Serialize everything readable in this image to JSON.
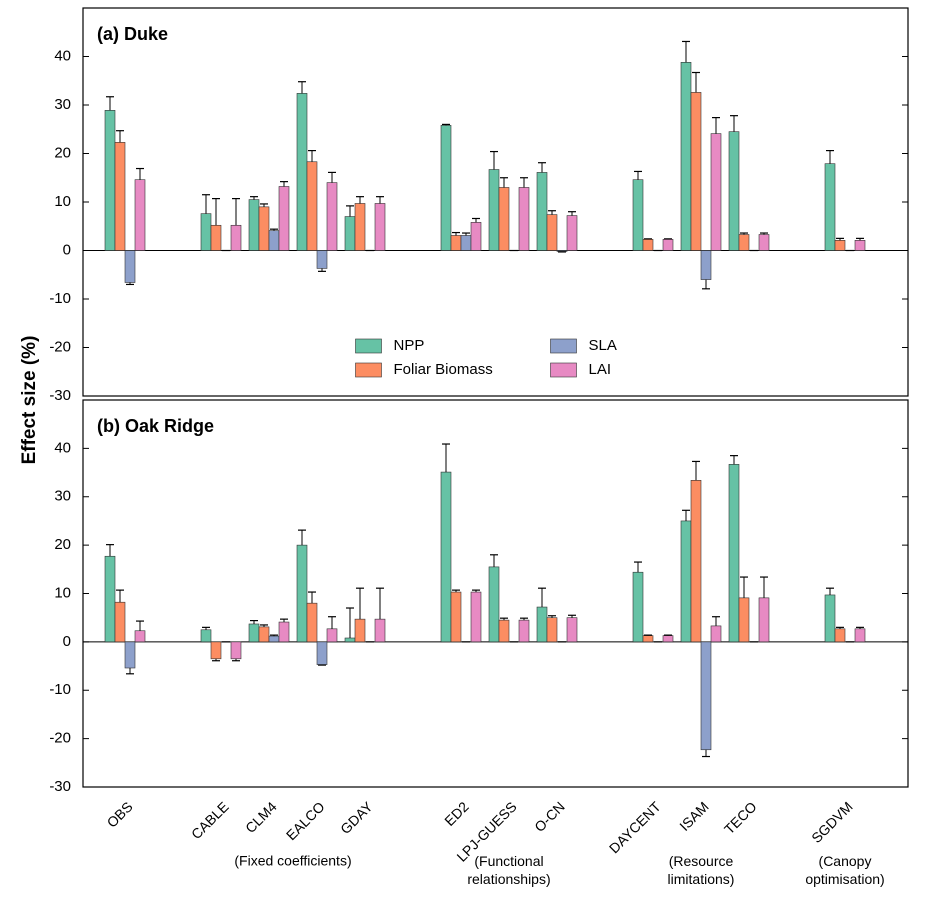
{
  "chart_data": [
    {
      "type": "bar",
      "title": "(a) Duke",
      "ylabel": "Effect size (%)",
      "ylim": [
        -30,
        50
      ],
      "yticks": [
        -30,
        -20,
        -10,
        0,
        10,
        20,
        30,
        40
      ],
      "legend": "lower center",
      "series": [
        {
          "name": "NPP",
          "color": "#66c2a5",
          "values": [
            28.9,
            null,
            7.6,
            10.5,
            32.4,
            7.0,
            null,
            25.8,
            16.7,
            16.1,
            null,
            14.6,
            38.8,
            24.5,
            null,
            17.9
          ],
          "errors": [
            2.8,
            null,
            3.9,
            0.6,
            2.4,
            2.2,
            null,
            0.2,
            3.7,
            2.0,
            null,
            1.7,
            4.3,
            3.3,
            null,
            2.7
          ]
        },
        {
          "name": "Foliar Biomass",
          "color": "#fc8d62",
          "values": [
            22.3,
            null,
            5.2,
            9.0,
            18.3,
            9.7,
            null,
            3.1,
            13.0,
            7.4,
            null,
            2.3,
            32.6,
            3.3,
            null,
            2.1
          ],
          "errors": [
            2.4,
            null,
            5.5,
            0.6,
            2.3,
            1.4,
            null,
            0.6,
            2.0,
            0.8,
            null,
            0.1,
            4.1,
            0.3,
            null,
            0.4
          ]
        },
        {
          "name": "SLA",
          "color": "#8da0cb",
          "values": [
            -6.6,
            null,
            0,
            4.1,
            -3.7,
            0,
            null,
            3.1,
            0,
            -0.2,
            null,
            0,
            -6.0,
            0,
            null,
            0
          ],
          "errors": [
            0.4,
            null,
            0,
            0.3,
            0.6,
            0,
            null,
            0.5,
            0,
            0.1,
            null,
            0,
            1.9,
            0,
            null,
            0
          ]
        },
        {
          "name": "LAI",
          "color": "#e78ac3",
          "values": [
            14.6,
            null,
            5.2,
            13.2,
            14.0,
            9.7,
            null,
            5.8,
            13.0,
            7.2,
            null,
            2.3,
            24.1,
            3.3,
            null,
            2.1
          ],
          "errors": [
            2.3,
            null,
            5.5,
            1.0,
            2.1,
            1.4,
            null,
            0.8,
            2.0,
            0.8,
            null,
            0.1,
            3.3,
            0.3,
            null,
            0.4
          ]
        }
      ]
    },
    {
      "type": "bar",
      "title": "(b) Oak Ridge",
      "ylim": [
        -30,
        50
      ],
      "yticks": [
        -30,
        -20,
        -10,
        0,
        10,
        20,
        30,
        40
      ],
      "categories": [
        "OBS",
        null,
        "CABLE",
        "CLM4",
        "EALCO",
        "GDAY",
        null,
        "ED2",
        "LPJ-GUESS",
        "O-CN",
        null,
        "DAYCENT",
        "ISAM",
        "TECO",
        null,
        "SGDVM"
      ],
      "group_labels": [
        null,
        "(Fixed coefficients)",
        "(Functional relationships)",
        "(Resource limitations)",
        "(Canopy optimisation)"
      ],
      "series": [
        {
          "color": "#66c2a5",
          "values": [
            17.7,
            null,
            2.5,
            3.7,
            20.0,
            0.8,
            null,
            35.1,
            15.5,
            7.2,
            null,
            14.4,
            25.0,
            36.7,
            null,
            9.7
          ],
          "errors": [
            2.4,
            null,
            0.5,
            0.7,
            3.1,
            6.2,
            null,
            5.8,
            2.5,
            3.9,
            null,
            2.1,
            2.2,
            1.8,
            null,
            1.4
          ]
        },
        {
          "color": "#fc8d62",
          "values": [
            8.2,
            null,
            -3.5,
            3.1,
            8.0,
            4.7,
            null,
            10.3,
            4.5,
            5.0,
            null,
            1.3,
            33.4,
            9.1,
            null,
            2.7
          ],
          "errors": [
            2.5,
            null,
            0.4,
            0.4,
            2.3,
            6.4,
            null,
            0.4,
            0.4,
            0.4,
            null,
            0.1,
            3.9,
            4.3,
            null,
            0.3
          ]
        },
        {
          "color": "#8da0cb",
          "values": [
            -5.4,
            null,
            0,
            1.2,
            -4.7,
            0,
            null,
            0,
            0,
            0,
            null,
            0,
            -22.3,
            0,
            null,
            0
          ],
          "errors": [
            1.2,
            null,
            0,
            0.2,
            0.1,
            0,
            null,
            0,
            0,
            0,
            null,
            0,
            1.4,
            0,
            null,
            0
          ]
        },
        {
          "color": "#e78ac3",
          "values": [
            2.3,
            null,
            -3.5,
            4.1,
            2.7,
            4.7,
            null,
            10.3,
            4.5,
            5.0,
            null,
            1.3,
            3.3,
            9.1,
            null,
            2.7
          ],
          "errors": [
            2.0,
            null,
            0.4,
            0.6,
            2.5,
            6.4,
            null,
            0.4,
            0.4,
            0.5,
            null,
            0.1,
            1.9,
            4.3,
            null,
            0.3
          ]
        }
      ]
    }
  ]
}
